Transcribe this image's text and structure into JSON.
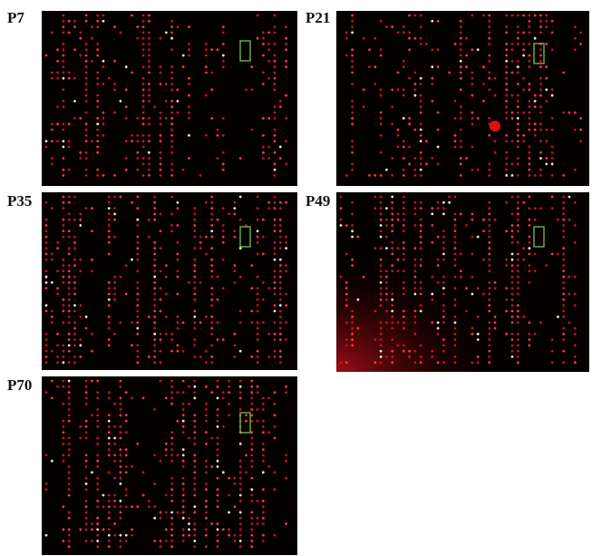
{
  "panels": [
    {
      "label": "P7"
    },
    {
      "label": "P21"
    },
    {
      "label": "P35"
    },
    {
      "label": "P49"
    },
    {
      "label": "P70"
    }
  ]
}
